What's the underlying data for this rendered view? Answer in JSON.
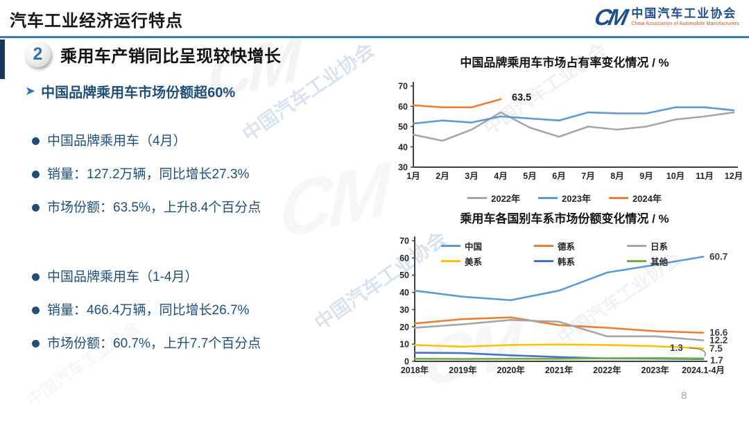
{
  "header": {
    "title": "汽车工业经济运行特点",
    "logo": {
      "mark": "CM",
      "org_cn": "中国汽车工业协会",
      "org_en": "China Association of Automobile Manufacturers"
    }
  },
  "section": {
    "number": "2",
    "heading": "乘用车产销同比呈现较快增长",
    "subheading": "中国品牌乘用车市场份额超60%"
  },
  "bullets": {
    "groups": [
      {
        "lines": [
          "中国品牌乘用车（4月）",
          "销量：127.2万辆，同比增长27.3%",
          "市场份额：63.5%，上升8.4个百分点"
        ]
      },
      {
        "lines": [
          "中国品牌乘用车（1-4月）",
          "销量：466.4万辆，同比增长26.7%",
          "市场份额：60.7%，上升7.7个百分点"
        ]
      }
    ]
  },
  "watermark": {
    "text": "中国汽车工业协会"
  },
  "page_number": "8",
  "colors": {
    "accent_blue": "#1f4e79",
    "divider_blue": "#3a7abf",
    "logo_en_orange": "#c0532a"
  },
  "chart_data": [
    {
      "type": "line",
      "title": "中国品牌乘用车市场占有率变化情况 / %",
      "x_labels": [
        "1月",
        "2月",
        "3月",
        "4月",
        "5月",
        "6月",
        "7月",
        "8月",
        "9月",
        "10月",
        "11月",
        "12月"
      ],
      "ylim": [
        30,
        70
      ],
      "yticks": [
        30,
        40,
        50,
        60,
        70
      ],
      "grid": false,
      "legend_position": "bottom",
      "series": [
        {
          "name": "2022年",
          "color": "#a6a6a6",
          "values": [
            46,
            43,
            48.5,
            57,
            49.5,
            45,
            50,
            48.5,
            50,
            53.5,
            55,
            57
          ]
        },
        {
          "name": "2023年",
          "color": "#5b9bd5",
          "values": [
            51.5,
            53,
            52,
            55,
            54,
            53,
            57,
            56.5,
            56.5,
            59.5,
            59.5,
            58
          ]
        },
        {
          "name": "2024年",
          "color": "#ed7d31",
          "values": [
            60.5,
            59.5,
            59.5,
            63.5
          ]
        }
      ],
      "annotations": [
        {
          "text": "63.5",
          "series": 2,
          "index": 3,
          "dx": 16,
          "dy": 2
        }
      ]
    },
    {
      "type": "line",
      "title": "乘用车各国别车系市场份额变化情况 / %",
      "x_labels": [
        "2018年",
        "2019年",
        "2020年",
        "2021年",
        "2022年",
        "2023年",
        "2024.1-4月"
      ],
      "ylim": [
        0,
        70
      ],
      "yticks": [
        0,
        10,
        20,
        30,
        40,
        50,
        60,
        70
      ],
      "grid": false,
      "legend_position": "inside-top",
      "series": [
        {
          "name": "中国",
          "color": "#5b9bd5",
          "values": [
            41,
            37.5,
            35.5,
            41,
            51.5,
            56,
            60.7
          ],
          "end_label": "60.7"
        },
        {
          "name": "德系",
          "color": "#ed7d31",
          "values": [
            22,
            24.5,
            25.5,
            21,
            19.5,
            17.5,
            16.6
          ],
          "end_label": "16.6"
        },
        {
          "name": "日系",
          "color": "#a6a6a6",
          "values": [
            19.5,
            21.5,
            24,
            23,
            14.5,
            14.5,
            12.2
          ],
          "end_label": "12.2"
        },
        {
          "name": "美系",
          "color": "#ffc000",
          "values": [
            9.5,
            8.5,
            9.5,
            9.8,
            9.5,
            8.8,
            7.5
          ],
          "end_label": "7.5"
        },
        {
          "name": "韩系",
          "color": "#4472c4",
          "values": [
            5,
            4.8,
            3.5,
            2.5,
            1.7,
            1.6,
            1.3
          ],
          "end_label": "1.3",
          "end_label_offset": [
            -48,
            -12
          ],
          "end_label_connector": true
        },
        {
          "name": "其他",
          "color": "#70ad47",
          "values": [
            1.5,
            1.4,
            1.5,
            1.5,
            1.8,
            1.9,
            1.7
          ],
          "end_label": "1.7",
          "end_label_offset": [
            10,
            7
          ]
        }
      ]
    }
  ]
}
